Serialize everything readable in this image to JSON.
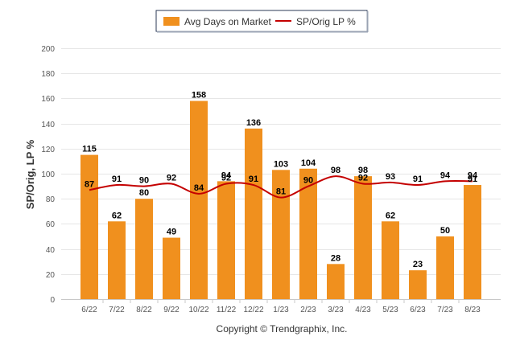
{
  "chart_data": {
    "type": "bar",
    "categories": [
      "6/22",
      "7/22",
      "8/22",
      "9/22",
      "10/22",
      "11/22",
      "12/22",
      "1/23",
      "2/23",
      "3/23",
      "4/23",
      "5/23",
      "6/23",
      "7/23",
      "8/23"
    ],
    "series": [
      {
        "name": "Avg Days on Market",
        "type": "bar",
        "color": "#f0901e",
        "values": [
          115,
          62,
          80,
          49,
          158,
          94,
          136,
          103,
          104,
          28,
          98,
          62,
          23,
          50,
          91
        ]
      },
      {
        "name": "SP/Orig LP %",
        "type": "line",
        "color": "#c40000",
        "values": [
          87,
          91,
          90,
          92,
          84,
          92,
          91,
          81,
          90,
          98,
          92,
          93,
          91,
          94,
          94
        ]
      }
    ],
    "ylabel": "SP/Orig, LP %",
    "xlabel": "",
    "ylim": [
      0,
      200
    ],
    "yticks": [
      0,
      20,
      40,
      60,
      80,
      100,
      120,
      140,
      160,
      180,
      200
    ],
    "grid": true,
    "legend_position": "top-center"
  },
  "credit": "Copyright © Trendgraphix, Inc."
}
